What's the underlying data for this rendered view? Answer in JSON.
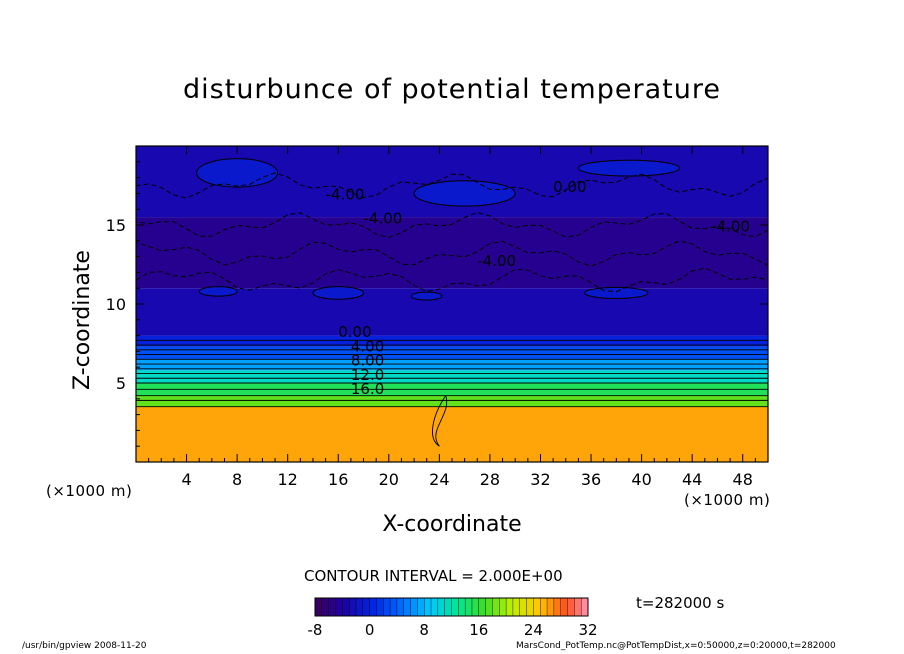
{
  "chart_data": {
    "type": "heatmap",
    "title": "disturbunce of potential temperature",
    "xlabel": "X-coordinate",
    "ylabel": "Z-coordinate",
    "x_unit": "(×1000 m)",
    "y_unit": "(×1000 m)",
    "xlim": [
      0,
      50
    ],
    "ylim": [
      0,
      20
    ],
    "x_ticks": [
      4,
      8,
      12,
      16,
      20,
      24,
      28,
      32,
      36,
      40,
      44,
      48
    ],
    "y_ticks": [
      5,
      10,
      15
    ],
    "contour_interval": "CONTOUR INTERVAL = 2.000E+00",
    "contour_labels": [
      "-4.00",
      "-4.00",
      "-4.00",
      "0.00",
      "4.00",
      "-4.00",
      "0.00",
      "4.00",
      "8.00",
      "12.0",
      "16.0"
    ],
    "colorbar": {
      "min": -8,
      "max": 32,
      "ticks": [
        -8,
        0,
        8,
        16,
        24,
        32
      ]
    },
    "time_label": "t=282000 s",
    "bands": [
      {
        "z_bottom": 0,
        "z_top": 3.5,
        "value": 26
      },
      {
        "z_bottom": 3.5,
        "z_top": 4.2,
        "value": 18
      },
      {
        "z_bottom": 4.2,
        "z_top": 5.0,
        "value": 15
      },
      {
        "z_bottom": 5.0,
        "z_top": 5.8,
        "value": 11
      },
      {
        "z_bottom": 5.8,
        "z_top": 6.5,
        "value": 7
      },
      {
        "z_bottom": 6.5,
        "z_top": 7.3,
        "value": 3
      },
      {
        "z_bottom": 7.3,
        "z_top": 8.0,
        "value": 0
      },
      {
        "z_bottom": 8.0,
        "z_top": 11.0,
        "value": -3
      },
      {
        "z_bottom": 11.0,
        "z_top": 15.5,
        "value": -5
      },
      {
        "z_bottom": 15.5,
        "z_top": 20,
        "value": -3
      }
    ]
  },
  "footer": {
    "left": "/usr/bin/gpview   2008-11-20",
    "right": "MarsCond_PotTemp.nc@PotTempDist,x=0:50000,z=0:20000,t=282000"
  },
  "colors": {
    "frame": "#000000",
    "background": "#ffffff"
  }
}
